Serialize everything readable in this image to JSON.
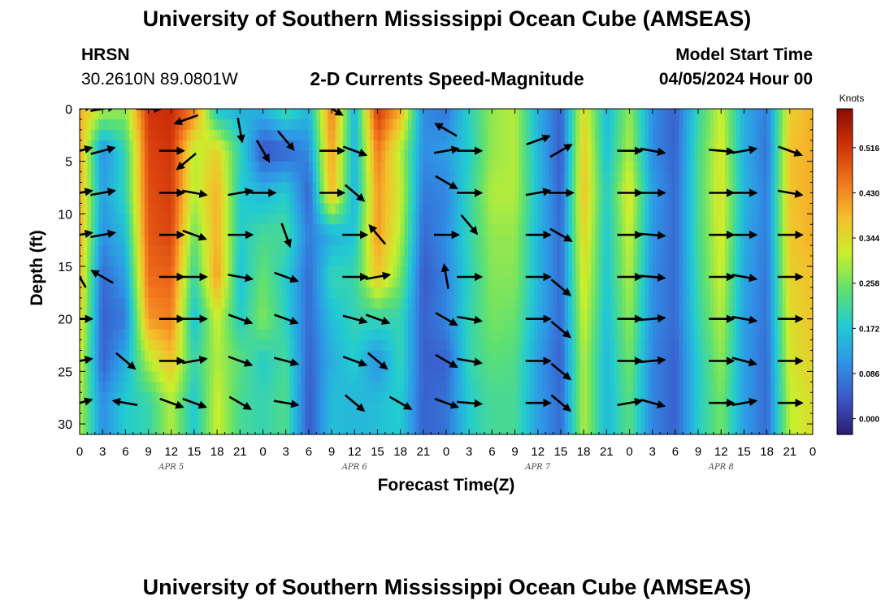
{
  "header": {
    "main_title": "University of Southern Mississippi Ocean Cube (AMSEAS)",
    "station_name": "HRSN",
    "station_coords": "30.2610N  89.0801W",
    "chart_title": "2-D Currents Speed-Magnitude",
    "model_start_label": "Model Start Time",
    "model_start_value": "04/05/2024 Hour 00"
  },
  "footer": {
    "repeated_title": "University of Southern Mississippi Ocean Cube (AMSEAS)"
  },
  "colors": {
    "colormap": [
      "#2b1d6e",
      "#3b57c9",
      "#2f95e6",
      "#22cbd2",
      "#5fe070",
      "#c9ef2e",
      "#f4bf2c",
      "#f1731d",
      "#cf3208",
      "#8a0c04"
    ],
    "arrow": "#000000",
    "background": "#ffffff"
  },
  "chart_data": {
    "type": "heatmap",
    "title": "2-D Currents Speed-Magnitude",
    "xlabel": "Forecast Time(Z)",
    "ylabel": "Depth (ft)",
    "xlim": [
      0,
      96
    ],
    "ylim": [
      0,
      31
    ],
    "x_tick_values": [
      0,
      3,
      6,
      9,
      12,
      15,
      18,
      21,
      24,
      27,
      30,
      33,
      36,
      39,
      42,
      45,
      48,
      51,
      54,
      57,
      60,
      63,
      66,
      69,
      72,
      75,
      78,
      81,
      84,
      87,
      90,
      93,
      96
    ],
    "x_tick_labels": [
      "0",
      "3",
      "6",
      "9",
      "12",
      "15",
      "18",
      "21",
      "0",
      "3",
      "6",
      "9",
      "12",
      "15",
      "18",
      "21",
      "0",
      "3",
      "6",
      "9",
      "12",
      "15",
      "18",
      "21",
      "0",
      "3",
      "6",
      "9",
      "12",
      "15",
      "18",
      "21",
      "0"
    ],
    "y_ticks": [
      0,
      5,
      10,
      15,
      20,
      25,
      30
    ],
    "date_labels": [
      {
        "text": "APR 5",
        "x": 12
      },
      {
        "text": "APR 6",
        "x": 36
      },
      {
        "text": "APR 7",
        "x": 60
      },
      {
        "text": "APR 8",
        "x": 84
      }
    ],
    "colorbar": {
      "label": "Knots",
      "min": -0.03,
      "max": 0.59,
      "ticks": [
        0.0,
        0.086,
        0.172,
        0.258,
        0.344,
        0.43,
        0.516
      ],
      "tick_labels": [
        "0.000",
        "0.086",
        "0.172",
        "0.258",
        "0.344",
        "0.430",
        "0.516"
      ]
    },
    "time_hours": [
      0,
      3,
      6,
      9,
      12,
      15,
      18,
      21,
      24,
      27,
      30,
      33,
      36,
      39,
      42,
      45,
      48,
      51,
      54,
      57,
      60,
      63,
      66,
      69,
      72,
      75,
      78,
      81,
      84,
      87,
      90,
      93,
      96
    ],
    "depths_ft": [
      0,
      4,
      8,
      12,
      16,
      20,
      24,
      28
    ],
    "speed_knots_by_time": [
      [
        0.4,
        0.4,
        0.4,
        0.4,
        0.38,
        0.36,
        0.33,
        0.3
      ],
      [
        0.3,
        0.1,
        0.12,
        0.1,
        0.06,
        0.05,
        0.05,
        0.1
      ],
      [
        0.28,
        0.2,
        0.2,
        0.16,
        0.12,
        0.08,
        0.14,
        0.18
      ],
      [
        0.52,
        0.5,
        0.49,
        0.48,
        0.46,
        0.42,
        0.3,
        0.2
      ],
      [
        0.53,
        0.52,
        0.51,
        0.5,
        0.47,
        0.44,
        0.38,
        0.3
      ],
      [
        0.45,
        0.3,
        0.3,
        0.25,
        0.2,
        0.16,
        0.2,
        0.17
      ],
      [
        0.16,
        0.36,
        0.4,
        0.4,
        0.42,
        0.32,
        0.3,
        0.32
      ],
      [
        0.14,
        0.2,
        0.18,
        0.18,
        0.16,
        0.18,
        0.24,
        0.22
      ],
      [
        0.15,
        0.03,
        0.15,
        0.22,
        0.25,
        0.27,
        0.18,
        0.2
      ],
      [
        0.22,
        0.05,
        0.18,
        0.22,
        0.18,
        0.19,
        0.22,
        0.23
      ],
      [
        0.15,
        0.1,
        0.05,
        0.08,
        0.06,
        0.06,
        0.05,
        0.04
      ],
      [
        0.45,
        0.42,
        0.4,
        0.14,
        0.2,
        0.16,
        0.14,
        0.16
      ],
      [
        0.14,
        0.14,
        0.14,
        0.17,
        0.2,
        0.2,
        0.18,
        0.15
      ],
      [
        0.52,
        0.45,
        0.42,
        0.42,
        0.38,
        0.2,
        0.1,
        0.16
      ],
      [
        0.4,
        0.3,
        0.32,
        0.3,
        0.26,
        0.2,
        0.2,
        0.18
      ],
      [
        0.1,
        0.1,
        0.08,
        0.06,
        0.04,
        0.05,
        0.05,
        0.05
      ],
      [
        0.07,
        0.12,
        0.09,
        0.1,
        0.09,
        0.09,
        0.05,
        0.07
      ],
      [
        0.19,
        0.18,
        0.2,
        0.2,
        0.19,
        0.2,
        0.2,
        0.18
      ],
      [
        0.28,
        0.28,
        0.3,
        0.28,
        0.27,
        0.26,
        0.24,
        0.22
      ],
      [
        0.3,
        0.3,
        0.3,
        0.28,
        0.27,
        0.25,
        0.23,
        0.22
      ],
      [
        0.14,
        0.15,
        0.16,
        0.15,
        0.15,
        0.14,
        0.12,
        0.12
      ],
      [
        0.05,
        0.04,
        0.05,
        0.06,
        0.06,
        0.06,
        0.05,
        0.06
      ],
      [
        0.35,
        0.37,
        0.38,
        0.36,
        0.34,
        0.32,
        0.3,
        0.3
      ],
      [
        0.15,
        0.16,
        0.18,
        0.17,
        0.17,
        0.16,
        0.15,
        0.15
      ],
      [
        0.28,
        0.3,
        0.34,
        0.32,
        0.3,
        0.28,
        0.26,
        0.24
      ],
      [
        0.1,
        0.1,
        0.12,
        0.11,
        0.1,
        0.1,
        0.09,
        0.09
      ],
      [
        0.05,
        0.05,
        0.06,
        0.06,
        0.06,
        0.06,
        0.05,
        0.05
      ],
      [
        0.2,
        0.22,
        0.22,
        0.22,
        0.21,
        0.2,
        0.18,
        0.18
      ],
      [
        0.32,
        0.33,
        0.34,
        0.33,
        0.32,
        0.3,
        0.28,
        0.26
      ],
      [
        0.14,
        0.14,
        0.15,
        0.14,
        0.13,
        0.12,
        0.12,
        0.12
      ],
      [
        0.08,
        0.07,
        0.08,
        0.08,
        0.07,
        0.07,
        0.06,
        0.06
      ],
      [
        0.36,
        0.38,
        0.38,
        0.37,
        0.36,
        0.34,
        0.33,
        0.31
      ],
      [
        0.4,
        0.4,
        0.4,
        0.4,
        0.38,
        0.38,
        0.36,
        0.34
      ]
    ],
    "vector_arrows": [
      {
        "t": 0,
        "d": 0,
        "dir": 15
      },
      {
        "t": 3,
        "d": 0,
        "dir": 10
      },
      {
        "t": 9,
        "d": 0,
        "dir": 0
      },
      {
        "t": 14,
        "d": 1,
        "dir": 200
      },
      {
        "t": 0,
        "d": 4,
        "dir": 15
      },
      {
        "t": 3,
        "d": 4,
        "dir": 15
      },
      {
        "t": 12,
        "d": 4,
        "dir": 0
      },
      {
        "t": 14,
        "d": 5,
        "dir": 220
      },
      {
        "t": 0,
        "d": 8,
        "dir": 10
      },
      {
        "t": 3,
        "d": 8,
        "dir": 10
      },
      {
        "t": 12,
        "d": 8,
        "dir": 0
      },
      {
        "t": 15,
        "d": 8,
        "dir": 350
      },
      {
        "t": 0,
        "d": 12,
        "dir": 10
      },
      {
        "t": 3,
        "d": 12,
        "dir": 10
      },
      {
        "t": 12,
        "d": 12,
        "dir": 0
      },
      {
        "t": 15,
        "d": 12,
        "dir": 340
      },
      {
        "t": 0,
        "d": 16,
        "dir": 120
      },
      {
        "t": 3,
        "d": 16,
        "dir": 150
      },
      {
        "t": 12,
        "d": 16,
        "dir": 0
      },
      {
        "t": 15,
        "d": 16,
        "dir": 0
      },
      {
        "t": 0,
        "d": 20,
        "dir": 0
      },
      {
        "t": 12,
        "d": 20,
        "dir": 0
      },
      {
        "t": 15,
        "d": 20,
        "dir": 0
      },
      {
        "t": 0,
        "d": 24,
        "dir": 10
      },
      {
        "t": 6,
        "d": 24,
        "dir": 320
      },
      {
        "t": 12,
        "d": 24,
        "dir": 0
      },
      {
        "t": 15,
        "d": 24,
        "dir": 10
      },
      {
        "t": 0,
        "d": 28,
        "dir": 15
      },
      {
        "t": 6,
        "d": 28,
        "dir": 170
      },
      {
        "t": 12,
        "d": 28,
        "dir": 340
      },
      {
        "t": 15,
        "d": 28,
        "dir": 340
      },
      {
        "t": 21,
        "d": 2,
        "dir": 280
      },
      {
        "t": 21,
        "d": 8,
        "dir": 10
      },
      {
        "t": 24,
        "d": 8,
        "dir": 0
      },
      {
        "t": 24,
        "d": 4,
        "dir": 300
      },
      {
        "t": 27,
        "d": 3,
        "dir": 310
      },
      {
        "t": 21,
        "d": 12,
        "dir": 0
      },
      {
        "t": 27,
        "d": 12,
        "dir": 290
      },
      {
        "t": 21,
        "d": 16,
        "dir": 350
      },
      {
        "t": 27,
        "d": 16,
        "dir": 340
      },
      {
        "t": 21,
        "d": 20,
        "dir": 340
      },
      {
        "t": 27,
        "d": 20,
        "dir": 340
      },
      {
        "t": 21,
        "d": 24,
        "dir": 340
      },
      {
        "t": 27,
        "d": 24,
        "dir": 345
      },
      {
        "t": 21,
        "d": 28,
        "dir": 330
      },
      {
        "t": 27,
        "d": 28,
        "dir": 350
      },
      {
        "t": 33,
        "d": 0,
        "dir": 330
      },
      {
        "t": 33,
        "d": 4,
        "dir": 0
      },
      {
        "t": 36,
        "d": 4,
        "dir": 340
      },
      {
        "t": 33,
        "d": 8,
        "dir": 0
      },
      {
        "t": 36,
        "d": 8,
        "dir": 320
      },
      {
        "t": 36,
        "d": 12,
        "dir": 0
      },
      {
        "t": 39,
        "d": 12,
        "dir": 130
      },
      {
        "t": 36,
        "d": 16,
        "dir": 0
      },
      {
        "t": 39,
        "d": 16,
        "dir": 10
      },
      {
        "t": 36,
        "d": 20,
        "dir": 345
      },
      {
        "t": 39,
        "d": 20,
        "dir": 340
      },
      {
        "t": 36,
        "d": 24,
        "dir": 340
      },
      {
        "t": 39,
        "d": 24,
        "dir": 320
      },
      {
        "t": 36,
        "d": 28,
        "dir": 320
      },
      {
        "t": 42,
        "d": 28,
        "dir": 330
      },
      {
        "t": 48,
        "d": 2,
        "dir": 150
      },
      {
        "t": 48,
        "d": 4,
        "dir": 10
      },
      {
        "t": 51,
        "d": 4,
        "dir": 0
      },
      {
        "t": 48,
        "d": 7,
        "dir": 330
      },
      {
        "t": 51,
        "d": 8,
        "dir": 0
      },
      {
        "t": 48,
        "d": 12,
        "dir": 0
      },
      {
        "t": 51,
        "d": 11,
        "dir": 310
      },
      {
        "t": 48,
        "d": 16,
        "dir": 100
      },
      {
        "t": 51,
        "d": 16,
        "dir": 0
      },
      {
        "t": 48,
        "d": 20,
        "dir": 330
      },
      {
        "t": 51,
        "d": 20,
        "dir": 350
      },
      {
        "t": 48,
        "d": 24,
        "dir": 330
      },
      {
        "t": 51,
        "d": 24,
        "dir": 350
      },
      {
        "t": 48,
        "d": 28,
        "dir": 340
      },
      {
        "t": 51,
        "d": 28,
        "dir": 355
      },
      {
        "t": 60,
        "d": 3,
        "dir": 20
      },
      {
        "t": 63,
        "d": 4,
        "dir": 30
      },
      {
        "t": 60,
        "d": 8,
        "dir": 10
      },
      {
        "t": 63,
        "d": 8,
        "dir": 0
      },
      {
        "t": 60,
        "d": 12,
        "dir": 0
      },
      {
        "t": 63,
        "d": 12,
        "dir": 330
      },
      {
        "t": 60,
        "d": 16,
        "dir": 0
      },
      {
        "t": 63,
        "d": 17,
        "dir": 320
      },
      {
        "t": 60,
        "d": 20,
        "dir": 0
      },
      {
        "t": 63,
        "d": 21,
        "dir": 320
      },
      {
        "t": 60,
        "d": 24,
        "dir": 0
      },
      {
        "t": 63,
        "d": 25,
        "dir": 320
      },
      {
        "t": 60,
        "d": 28,
        "dir": 0
      },
      {
        "t": 63,
        "d": 28,
        "dir": 320
      },
      {
        "t": 72,
        "d": 4,
        "dir": 0
      },
      {
        "t": 75,
        "d": 4,
        "dir": 350
      },
      {
        "t": 72,
        "d": 8,
        "dir": 0
      },
      {
        "t": 75,
        "d": 8,
        "dir": 0
      },
      {
        "t": 72,
        "d": 12,
        "dir": 0
      },
      {
        "t": 75,
        "d": 12,
        "dir": 355
      },
      {
        "t": 72,
        "d": 16,
        "dir": 0
      },
      {
        "t": 75,
        "d": 16,
        "dir": 355
      },
      {
        "t": 72,
        "d": 20,
        "dir": 0
      },
      {
        "t": 75,
        "d": 20,
        "dir": 5
      },
      {
        "t": 72,
        "d": 24,
        "dir": 0
      },
      {
        "t": 75,
        "d": 24,
        "dir": 5
      },
      {
        "t": 72,
        "d": 28,
        "dir": 10
      },
      {
        "t": 75,
        "d": 28,
        "dir": 345
      },
      {
        "t": 84,
        "d": 4,
        "dir": 355
      },
      {
        "t": 87,
        "d": 4,
        "dir": 10
      },
      {
        "t": 84,
        "d": 8,
        "dir": 0
      },
      {
        "t": 87,
        "d": 8,
        "dir": 0
      },
      {
        "t": 84,
        "d": 12,
        "dir": 0
      },
      {
        "t": 87,
        "d": 12,
        "dir": 0
      },
      {
        "t": 84,
        "d": 16,
        "dir": 0
      },
      {
        "t": 87,
        "d": 16,
        "dir": 350
      },
      {
        "t": 84,
        "d": 20,
        "dir": 0
      },
      {
        "t": 87,
        "d": 20,
        "dir": 350
      },
      {
        "t": 84,
        "d": 24,
        "dir": 0
      },
      {
        "t": 87,
        "d": 24,
        "dir": 345
      },
      {
        "t": 84,
        "d": 28,
        "dir": 0
      },
      {
        "t": 87,
        "d": 28,
        "dir": 10
      },
      {
        "t": 93,
        "d": 4,
        "dir": 340
      },
      {
        "t": 93,
        "d": 8,
        "dir": 350
      },
      {
        "t": 93,
        "d": 12,
        "dir": 0
      },
      {
        "t": 93,
        "d": 16,
        "dir": 0
      },
      {
        "t": 93,
        "d": 20,
        "dir": 0
      },
      {
        "t": 93,
        "d": 24,
        "dir": 0
      },
      {
        "t": 93,
        "d": 28,
        "dir": 0
      }
    ]
  }
}
